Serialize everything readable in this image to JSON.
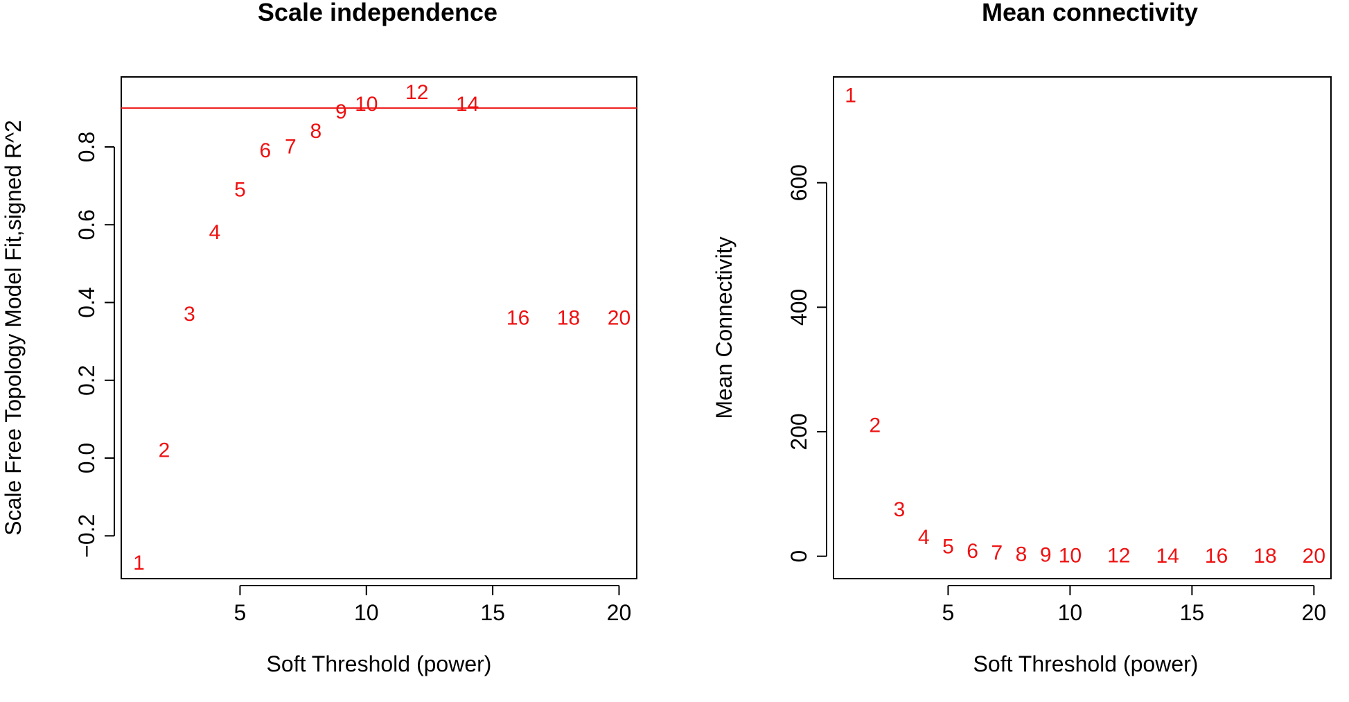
{
  "colors": {
    "points": "#ee1111",
    "cutoff_line": "#ee1111",
    "axes": "#000000"
  },
  "chart_data": [
    {
      "type": "scatter",
      "marker": "text labels (power values)",
      "title": "Scale independence",
      "xlabel": "Soft Threshold (power)",
      "ylabel": "Scale Free Topology Model Fit,signed R^2",
      "xlim": [
        0.3,
        20.7
      ],
      "ylim": [
        -0.31,
        0.98
      ],
      "xticks": [
        5,
        10,
        15,
        20
      ],
      "xtick_labels": [
        "5",
        "10",
        "15",
        "20"
      ],
      "yticks": [
        -0.2,
        0.0,
        0.2,
        0.4,
        0.6,
        0.8
      ],
      "ytick_labels": [
        "−0.2",
        "0.0",
        "0.2",
        "0.4",
        "0.6",
        "0.8"
      ],
      "grid": false,
      "hline": 0.9,
      "points": [
        {
          "x": 1,
          "y": -0.27,
          "label": "1"
        },
        {
          "x": 2,
          "y": 0.02,
          "label": "2"
        },
        {
          "x": 3,
          "y": 0.37,
          "label": "3"
        },
        {
          "x": 4,
          "y": 0.58,
          "label": "4"
        },
        {
          "x": 5,
          "y": 0.69,
          "label": "5"
        },
        {
          "x": 6,
          "y": 0.79,
          "label": "6"
        },
        {
          "x": 7,
          "y": 0.8,
          "label": "7"
        },
        {
          "x": 8,
          "y": 0.84,
          "label": "8"
        },
        {
          "x": 9,
          "y": 0.89,
          "label": "9"
        },
        {
          "x": 10,
          "y": 0.91,
          "label": "10"
        },
        {
          "x": 12,
          "y": 0.94,
          "label": "12"
        },
        {
          "x": 14,
          "y": 0.91,
          "label": "14"
        },
        {
          "x": 16,
          "y": 0.36,
          "label": "16"
        },
        {
          "x": 18,
          "y": 0.36,
          "label": "18"
        },
        {
          "x": 20,
          "y": 0.36,
          "label": "20"
        }
      ]
    },
    {
      "type": "scatter",
      "marker": "text labels (power values)",
      "title": "Mean connectivity",
      "xlabel": "Soft Threshold (power)",
      "ylabel": "Mean Connectivity",
      "xlim": [
        0.3,
        20.7
      ],
      "ylim": [
        -36,
        770
      ],
      "xticks": [
        5,
        10,
        15,
        20
      ],
      "xtick_labels": [
        "5",
        "10",
        "15",
        "20"
      ],
      "yticks": [
        0,
        200,
        400,
        600
      ],
      "ytick_labels": [
        "0",
        "200",
        "400",
        "600"
      ],
      "grid": false,
      "points": [
        {
          "x": 1,
          "y": 740,
          "label": "1"
        },
        {
          "x": 2,
          "y": 210,
          "label": "2"
        },
        {
          "x": 3,
          "y": 75,
          "label": "3"
        },
        {
          "x": 4,
          "y": 30,
          "label": "4"
        },
        {
          "x": 5,
          "y": 15,
          "label": "5"
        },
        {
          "x": 6,
          "y": 8,
          "label": "6"
        },
        {
          "x": 7,
          "y": 5,
          "label": "7"
        },
        {
          "x": 8,
          "y": 3,
          "label": "8"
        },
        {
          "x": 9,
          "y": 2,
          "label": "9"
        },
        {
          "x": 10,
          "y": 1,
          "label": "10"
        },
        {
          "x": 12,
          "y": 0.5,
          "label": "12"
        },
        {
          "x": 14,
          "y": 0.3,
          "label": "14"
        },
        {
          "x": 16,
          "y": 0.2,
          "label": "16"
        },
        {
          "x": 18,
          "y": 0.1,
          "label": "18"
        },
        {
          "x": 20,
          "y": 0.1,
          "label": "20"
        }
      ]
    }
  ]
}
